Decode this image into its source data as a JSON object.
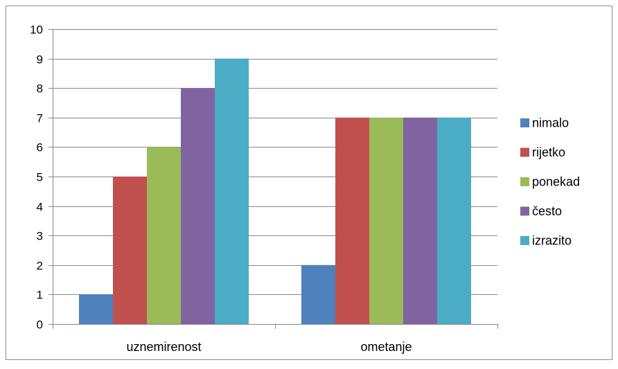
{
  "chart_data": {
    "type": "bar",
    "title": "",
    "xlabel": "",
    "ylabel": "",
    "categories": [
      "uznemirenost",
      "ometanje"
    ],
    "series": [
      {
        "name": "nimalo",
        "color": "#4F81BD",
        "values": [
          1,
          2
        ]
      },
      {
        "name": "rijetko",
        "color": "#C0504D",
        "values": [
          5,
          7
        ]
      },
      {
        "name": "ponekad",
        "color": "#9BBB59",
        "values": [
          6,
          7
        ]
      },
      {
        "name": "često",
        "color": "#8064A2",
        "values": [
          8,
          7
        ]
      },
      {
        "name": "izrazito",
        "color": "#4BACC6",
        "values": [
          9,
          7
        ]
      }
    ],
    "ylim": [
      0,
      10
    ],
    "yticks": [
      "0",
      "1",
      "2",
      "3",
      "4",
      "5",
      "6",
      "7",
      "8",
      "9",
      "10"
    ],
    "grid": true,
    "legend": "right"
  }
}
